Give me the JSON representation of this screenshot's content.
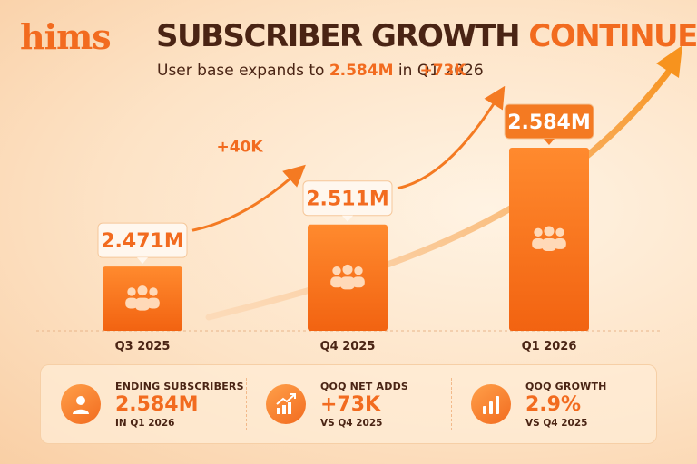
{
  "brand": {
    "logo": "hims",
    "accent_color": "#f26b1f",
    "dark_color": "#4a2414"
  },
  "header": {
    "title_main": "SUBSCRIBER GROWTH ",
    "title_accent": "CONTINUES",
    "subtitle_prefix": "User base expands to ",
    "subtitle_value": "2.584M",
    "subtitle_suffix": " in Q1 2026"
  },
  "chart_data": {
    "type": "bar",
    "categories": [
      "Q3 2025",
      "Q4 2025",
      "Q1 2026"
    ],
    "values": [
      2.471,
      2.511,
      2.584
    ],
    "value_labels": [
      "2.471M",
      "2.511M",
      "2.584M"
    ],
    "increments": [
      "+40K",
      "+73K"
    ],
    "unit": "M",
    "bar_icon": "people-group-icon",
    "trend_arrow": "upward-trend-arrow"
  },
  "stats": [
    {
      "label": "ENDING SUBSCRIBERS",
      "value": "2.584M",
      "note": "IN Q1 2026",
      "icon": "user-icon"
    },
    {
      "label": "QOQ NET ADDS",
      "value": "+73K",
      "note": "VS Q4 2025",
      "icon": "growth-chart-icon"
    },
    {
      "label": "QOQ GROWTH",
      "value": "2.9%",
      "note": "VS Q4 2025",
      "icon": "bar-chart-icon"
    }
  ]
}
